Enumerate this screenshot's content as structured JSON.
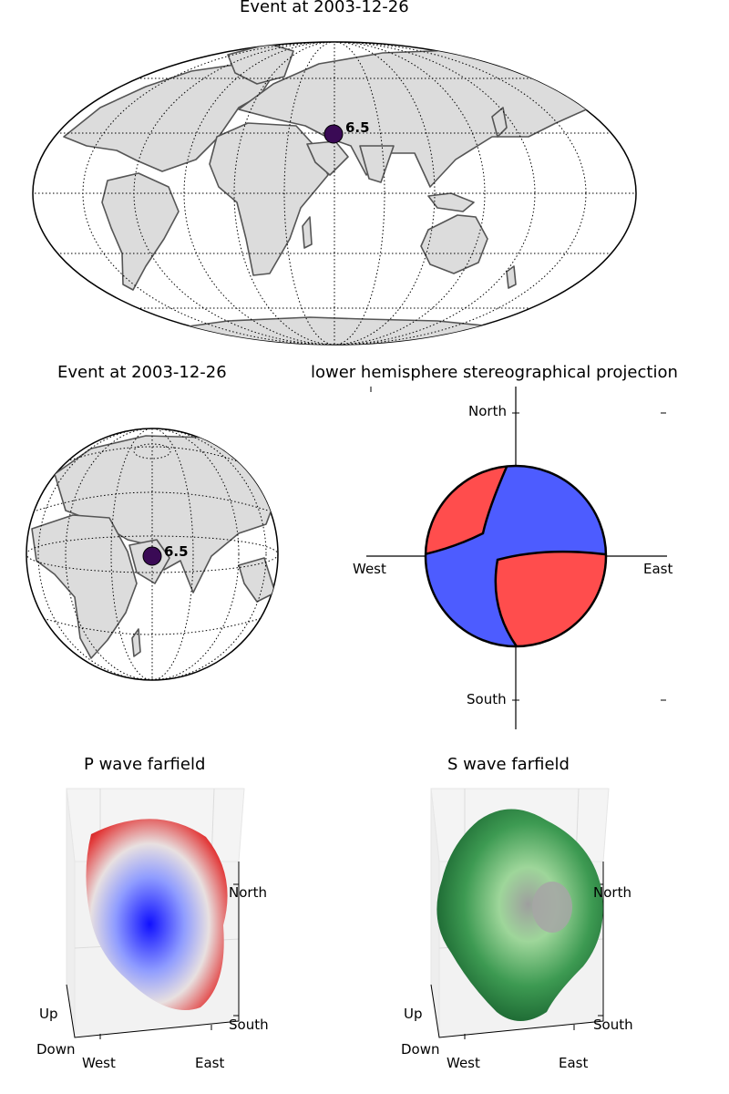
{
  "world_map": {
    "title": "Event at 2003-12-26",
    "magnitude": "6.5"
  },
  "globe_map": {
    "title": "Event at 2003-12-26",
    "magnitude": "6.5"
  },
  "beachball": {
    "title": "lower hemisphere stereographical projection",
    "labels": {
      "north": "North",
      "south": "South",
      "west": "West",
      "east": "East"
    },
    "colors": {
      "compression": "#ff4d4d",
      "dilatation": "#4d5cff"
    }
  },
  "p_wave": {
    "title": "P wave farfield",
    "axis_labels": {
      "up": "Up",
      "down": "Down",
      "west": "West",
      "east": "East",
      "north": "North",
      "south": "South"
    }
  },
  "s_wave": {
    "title": "S wave farfield",
    "axis_labels": {
      "up": "Up",
      "down": "Down",
      "west": "West",
      "east": "East",
      "north": "North",
      "south": "South"
    }
  }
}
